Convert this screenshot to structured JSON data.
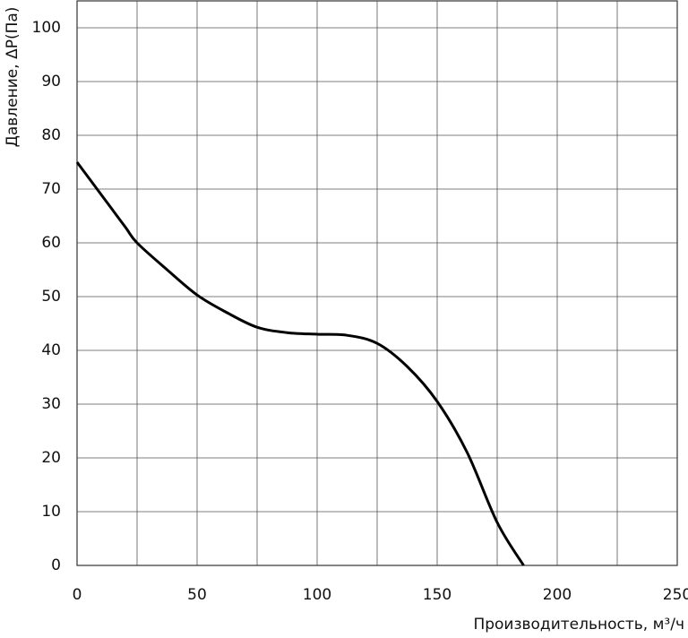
{
  "chart_data": {
    "type": "line",
    "xlabel": "Производительность, м³/ч",
    "ylabel": "Давление, ΔP(Па)",
    "x": [
      0,
      10,
      20,
      25,
      37.5,
      50,
      62.5,
      75,
      87.5,
      100,
      112.5,
      125,
      137.5,
      150,
      162.5,
      175,
      186
    ],
    "series": [
      {
        "color": "#000000",
        "values": [
          75,
          69,
          63,
          60,
          55,
          50.3,
          47,
          44.3,
          43.3,
          43,
          42.8,
          41.3,
          37,
          30.5,
          21,
          8,
          0
        ]
      }
    ],
    "xlim": [
      0,
      250
    ],
    "xticks": [
      0,
      50,
      100,
      150,
      200,
      250
    ],
    "x_minor_grid": [
      25,
      75,
      125,
      175,
      225
    ],
    "ylim": [
      0,
      105
    ],
    "yticks": [
      0,
      10,
      20,
      30,
      40,
      50,
      60,
      70,
      80,
      90,
      100
    ],
    "grid": true
  }
}
